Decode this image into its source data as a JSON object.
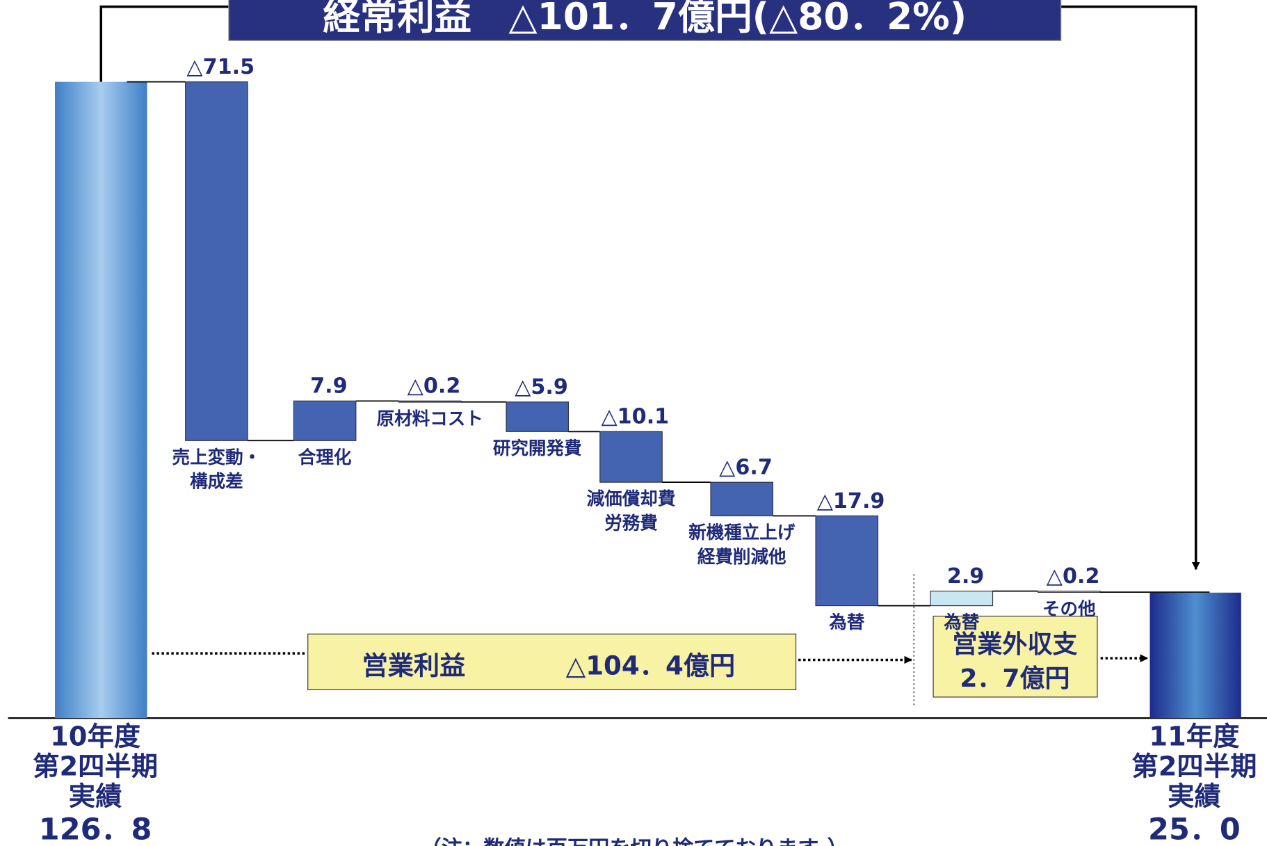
{
  "chart_data": {
    "type": "waterfall",
    "title": "経常利益　△101．7億円(△80．2%)",
    "start": {
      "label": [
        "10年度",
        "第2四半期",
        "実績"
      ],
      "value": 126.8,
      "value_label": "126．8"
    },
    "end": {
      "label": [
        "11年度",
        "第2四半期",
        "実績"
      ],
      "value": 25.0,
      "value_label": "25．0"
    },
    "categories": [
      [
        "売上変動・",
        "構成差"
      ],
      [
        "合理化"
      ],
      [
        "原材料コスト"
      ],
      [
        "研究開発費"
      ],
      [
        "減価償却費",
        "労務費"
      ],
      [
        "新機種立上げ",
        "経費削減他"
      ],
      [
        "為替"
      ],
      [
        "為替"
      ],
      [
        "その他"
      ]
    ],
    "values": [
      -71.5,
      7.9,
      -0.2,
      -5.9,
      -10.1,
      -6.7,
      -17.9,
      2.9,
      -0.2
    ],
    "value_labels": [
      "△71.5",
      "7.9",
      "△0.2",
      "△5.9",
      "△10.1",
      "△6.7",
      "△17.9",
      "2.9",
      "△0.2"
    ],
    "colors": [
      "#4463b0",
      "#4463b0",
      "#4463b0",
      "#4463b0",
      "#4463b0",
      "#4463b0",
      "#4463b0",
      "#c9e7f2",
      "#dbeef6"
    ],
    "annotations": {
      "operating": [
        "営業利益",
        "△104．4億円"
      ],
      "non_operating": [
        "営業外収支",
        "2．7億円"
      ]
    },
    "note": "（注：数値は百万円を切り捨てております。）"
  }
}
